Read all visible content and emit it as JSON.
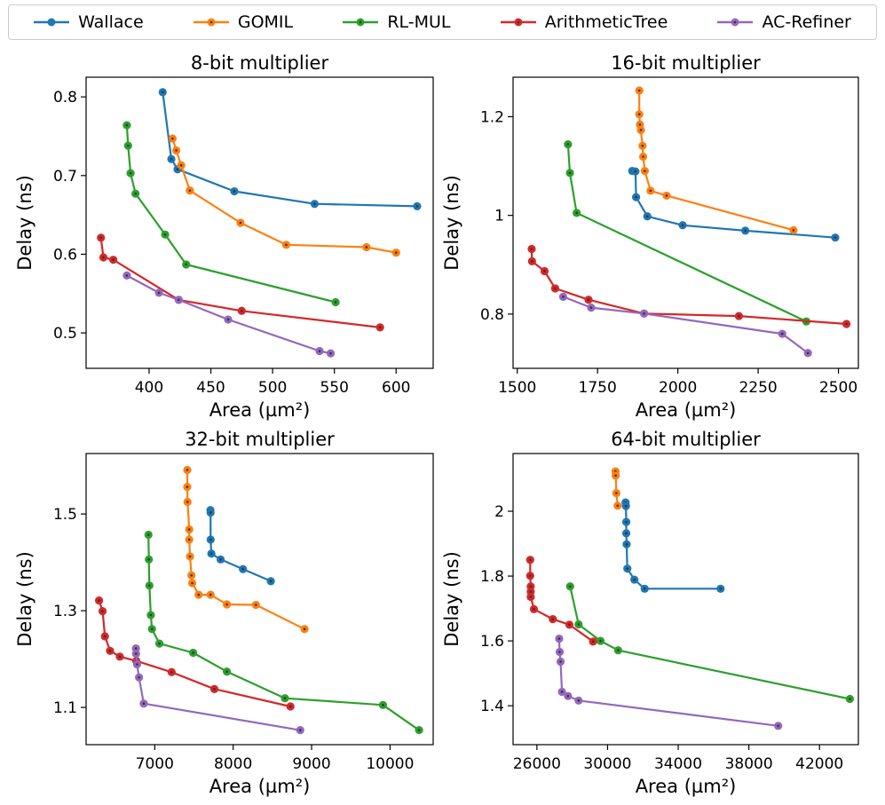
{
  "legend": [
    {
      "name": "Wallace",
      "color": "#1f77b4"
    },
    {
      "name": "GOMIL",
      "color": "#ff7f0e"
    },
    {
      "name": "RL-MUL",
      "color": "#2ca02c"
    },
    {
      "name": "ArithmeticTree",
      "color": "#d62728"
    },
    {
      "name": "AC-Refiner",
      "color": "#9467bd"
    }
  ],
  "chart_data": [
    {
      "type": "line",
      "title": "8-bit multiplier",
      "xlabel": "Area (µm²)",
      "ylabel": "Delay (ns)",
      "xlim": [
        349,
        630
      ],
      "ylim": [
        0.455,
        0.825
      ],
      "xticks": [
        400,
        450,
        500,
        550,
        600
      ],
      "yticks": [
        0.5,
        0.6,
        0.7,
        0.8
      ],
      "series": [
        {
          "name": "Wallace",
          "points": [
            [
              411,
              0.806
            ],
            [
              418,
              0.721
            ],
            [
              423,
              0.708
            ],
            [
              469,
              0.68
            ],
            [
              534,
              0.664
            ],
            [
              617,
              0.661
            ]
          ]
        },
        {
          "name": "GOMIL",
          "points": [
            [
              419,
              0.747
            ],
            [
              422,
              0.732
            ],
            [
              426,
              0.713
            ],
            [
              433,
              0.681
            ],
            [
              474,
              0.64
            ],
            [
              511,
              0.612
            ],
            [
              576,
              0.609
            ],
            [
              600,
              0.602
            ]
          ]
        },
        {
          "name": "RL-MUL",
          "points": [
            [
              382,
              0.764
            ],
            [
              383,
              0.738
            ],
            [
              385,
              0.703
            ],
            [
              389,
              0.677
            ],
            [
              413,
              0.625
            ],
            [
              430,
              0.587
            ],
            [
              551,
              0.539
            ]
          ]
        },
        {
          "name": "ArithmeticTree",
          "points": [
            [
              361,
              0.621
            ],
            [
              363,
              0.596
            ],
            [
              371,
              0.593
            ],
            [
              424,
              0.542
            ],
            [
              475,
              0.528
            ],
            [
              587,
              0.507
            ]
          ]
        },
        {
          "name": "AC-Refiner",
          "points": [
            [
              382,
              0.573
            ],
            [
              408,
              0.551
            ],
            [
              424,
              0.542
            ],
            [
              464,
              0.517
            ],
            [
              538,
              0.477
            ],
            [
              547,
              0.474
            ]
          ]
        }
      ]
    },
    {
      "type": "line",
      "title": "16-bit multiplier",
      "xlabel": "Area (µm²)",
      "ylabel": "Delay (ns)",
      "xlim": [
        1487,
        2562
      ],
      "ylim": [
        0.69,
        1.28
      ],
      "xticks": [
        1500,
        1750,
        2000,
        2250,
        2500
      ],
      "yticks": [
        0.8,
        1.0,
        1.2
      ],
      "series": [
        {
          "name": "Wallace",
          "points": [
            [
              1858,
              1.09
            ],
            [
              1868,
              1.089
            ],
            [
              1870,
              1.037
            ],
            [
              1905,
              0.998
            ],
            [
              2015,
              0.98
            ],
            [
              2210,
              0.969
            ],
            [
              2490,
              0.955
            ]
          ]
        },
        {
          "name": "GOMIL",
          "points": [
            [
              1880,
              1.253
            ],
            [
              1880,
              1.205
            ],
            [
              1882,
              1.184
            ],
            [
              1885,
              1.173
            ],
            [
              1890,
              1.141
            ],
            [
              1892,
              1.119
            ],
            [
              1897,
              1.09
            ],
            [
              1915,
              1.05
            ],
            [
              1965,
              1.04
            ],
            [
              2360,
              0.97
            ]
          ]
        },
        {
          "name": "RL-MUL",
          "points": [
            [
              1658,
              1.144
            ],
            [
              1664,
              1.086
            ],
            [
              1685,
              1.005
            ],
            [
              2400,
              0.785
            ]
          ]
        },
        {
          "name": "ArithmeticTree",
          "points": [
            [
              1545,
              0.932
            ],
            [
              1546,
              0.907
            ],
            [
              1585,
              0.887
            ],
            [
              1618,
              0.852
            ],
            [
              1722,
              0.829
            ],
            [
              1895,
              0.801
            ],
            [
              2190,
              0.796
            ],
            [
              2525,
              0.78
            ]
          ]
        },
        {
          "name": "AC-Refiner",
          "points": [
            [
              1643,
              0.835
            ],
            [
              1730,
              0.813
            ],
            [
              1895,
              0.801
            ],
            [
              2325,
              0.76
            ],
            [
              2405,
              0.721
            ]
          ]
        }
      ]
    },
    {
      "type": "line",
      "title": "32-bit multiplier",
      "xlabel": "Area (µm²)",
      "ylabel": "Delay (ns)",
      "xlim": [
        6125,
        10550
      ],
      "ylim": [
        1.023,
        1.625
      ],
      "xticks": [
        7000,
        8000,
        9000,
        10000
      ],
      "yticks": [
        1.1,
        1.3,
        1.5
      ],
      "xticklabels": [
        "7000",
        "8000",
        "9000",
        "10000"
      ],
      "yticklabels": [
        "1.1",
        "1.3",
        "1.5"
      ],
      "series": [
        {
          "name": "Wallace",
          "points": [
            [
              7710,
              1.508
            ],
            [
              7712,
              1.503
            ],
            [
              7713,
              1.447
            ],
            [
              7722,
              1.418
            ],
            [
              7840,
              1.406
            ],
            [
              8125,
              1.386
            ],
            [
              8480,
              1.361
            ]
          ]
        },
        {
          "name": "GOMIL",
          "points": [
            [
              7415,
              1.591
            ],
            [
              7415,
              1.556
            ],
            [
              7418,
              1.525
            ],
            [
              7440,
              1.468
            ],
            [
              7440,
              1.447
            ],
            [
              7450,
              1.412
            ],
            [
              7468,
              1.373
            ],
            [
              7478,
              1.357
            ],
            [
              7560,
              1.333
            ],
            [
              7712,
              1.333
            ],
            [
              7920,
              1.313
            ],
            [
              8290,
              1.312
            ],
            [
              8910,
              1.262
            ]
          ]
        },
        {
          "name": "RL-MUL",
          "points": [
            [
              6920,
              1.457
            ],
            [
              6925,
              1.406
            ],
            [
              6932,
              1.352
            ],
            [
              6950,
              1.291
            ],
            [
              6965,
              1.262
            ],
            [
              7060,
              1.232
            ],
            [
              7490,
              1.213
            ],
            [
              7920,
              1.174
            ],
            [
              8660,
              1.119
            ],
            [
              9910,
              1.105
            ],
            [
              10370,
              1.053
            ]
          ]
        },
        {
          "name": "ArithmeticTree",
          "points": [
            [
              6290,
              1.321
            ],
            [
              6335,
              1.299
            ],
            [
              6365,
              1.247
            ],
            [
              6430,
              1.217
            ],
            [
              6555,
              1.205
            ],
            [
              6765,
              1.196
            ],
            [
              7215,
              1.173
            ],
            [
              7760,
              1.138
            ],
            [
              8730,
              1.102
            ]
          ]
        },
        {
          "name": "AC-Refiner",
          "points": [
            [
              6760,
              1.222
            ],
            [
              6762,
              1.211
            ],
            [
              6775,
              1.189
            ],
            [
              6800,
              1.162
            ],
            [
              6860,
              1.108
            ],
            [
              8855,
              1.053
            ]
          ]
        }
      ]
    },
    {
      "type": "line",
      "title": "64-bit multiplier",
      "xlabel": "Area (µm²)",
      "ylabel": "Delay (ns)",
      "xlim": [
        24650,
        44200
      ],
      "ylim": [
        1.28,
        2.178
      ],
      "xticks": [
        26000,
        30000,
        34000,
        38000,
        42000
      ],
      "yticks": [
        1.4,
        1.6,
        1.8,
        2.0
      ],
      "series": [
        {
          "name": "Wallace",
          "points": [
            [
              31020,
              2.027
            ],
            [
              31040,
              2.016
            ],
            [
              31060,
              1.967
            ],
            [
              31060,
              1.932
            ],
            [
              31080,
              1.898
            ],
            [
              31120,
              1.823
            ],
            [
              31520,
              1.789
            ],
            [
              32100,
              1.761
            ],
            [
              36400,
              1.761
            ]
          ]
        },
        {
          "name": "GOMIL",
          "points": [
            [
              30450,
              2.123
            ],
            [
              30460,
              2.11
            ],
            [
              30500,
              2.056
            ],
            [
              30570,
              2.017
            ]
          ]
        },
        {
          "name": "RL-MUL",
          "points": [
            [
              27880,
              1.768
            ],
            [
              28360,
              1.651
            ],
            [
              29600,
              1.6
            ],
            [
              30600,
              1.571
            ],
            [
              43720,
              1.421
            ]
          ]
        },
        {
          "name": "ArithmeticTree",
          "points": [
            [
              25620,
              1.85
            ],
            [
              25620,
              1.801
            ],
            [
              25650,
              1.768
            ],
            [
              25650,
              1.752
            ],
            [
              25650,
              1.736
            ],
            [
              25830,
              1.698
            ],
            [
              26900,
              1.667
            ],
            [
              27840,
              1.65
            ],
            [
              29180,
              1.598
            ]
          ]
        },
        {
          "name": "AC-Refiner",
          "points": [
            [
              27260,
              1.607
            ],
            [
              27290,
              1.566
            ],
            [
              27340,
              1.536
            ],
            [
              27420,
              1.443
            ],
            [
              27760,
              1.43
            ],
            [
              28360,
              1.416
            ],
            [
              39660,
              1.338
            ]
          ]
        }
      ]
    }
  ]
}
